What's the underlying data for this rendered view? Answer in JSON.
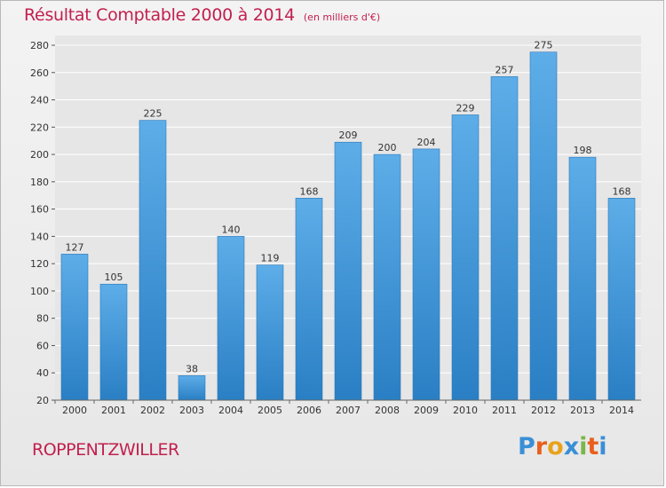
{
  "title": "Résultat Comptable 2000 à 2014",
  "subtitle": "(en milliers d'€)",
  "location": "ROPPENTZWILLER",
  "logo": {
    "text": "Proxiti",
    "colors": [
      "#3a8fd6",
      "#e8601c",
      "#e8a31c",
      "#3a8fd6",
      "#7ab648",
      "#e8601c",
      "#3a8fd6"
    ]
  },
  "colors": {
    "title": "#c2204e",
    "bar_top": "#5dade8",
    "bar_bottom": "#2a7fc4",
    "grid": "#ffffff",
    "axis_text": "#333333"
  },
  "chart_data": {
    "type": "bar",
    "categories": [
      "2000",
      "2001",
      "2002",
      "2003",
      "2004",
      "2005",
      "2006",
      "2007",
      "2008",
      "2009",
      "2010",
      "2011",
      "2012",
      "2013",
      "2014"
    ],
    "values": [
      127,
      105,
      225,
      38,
      140,
      119,
      168,
      209,
      200,
      204,
      229,
      257,
      275,
      198,
      168
    ],
    "data_labels": [
      "127",
      "105",
      "225",
      "38",
      "140",
      "119",
      "168",
      "209",
      "200",
      "204",
      "229",
      "257",
      "275",
      "198",
      "168"
    ],
    "ylim": [
      20,
      280
    ],
    "yticks": [
      "20",
      "40",
      "60",
      "80",
      "100",
      "120",
      "140",
      "160",
      "180",
      "200",
      "220",
      "240",
      "260",
      "280"
    ],
    "grid": true,
    "xlabel": "",
    "ylabel": ""
  }
}
